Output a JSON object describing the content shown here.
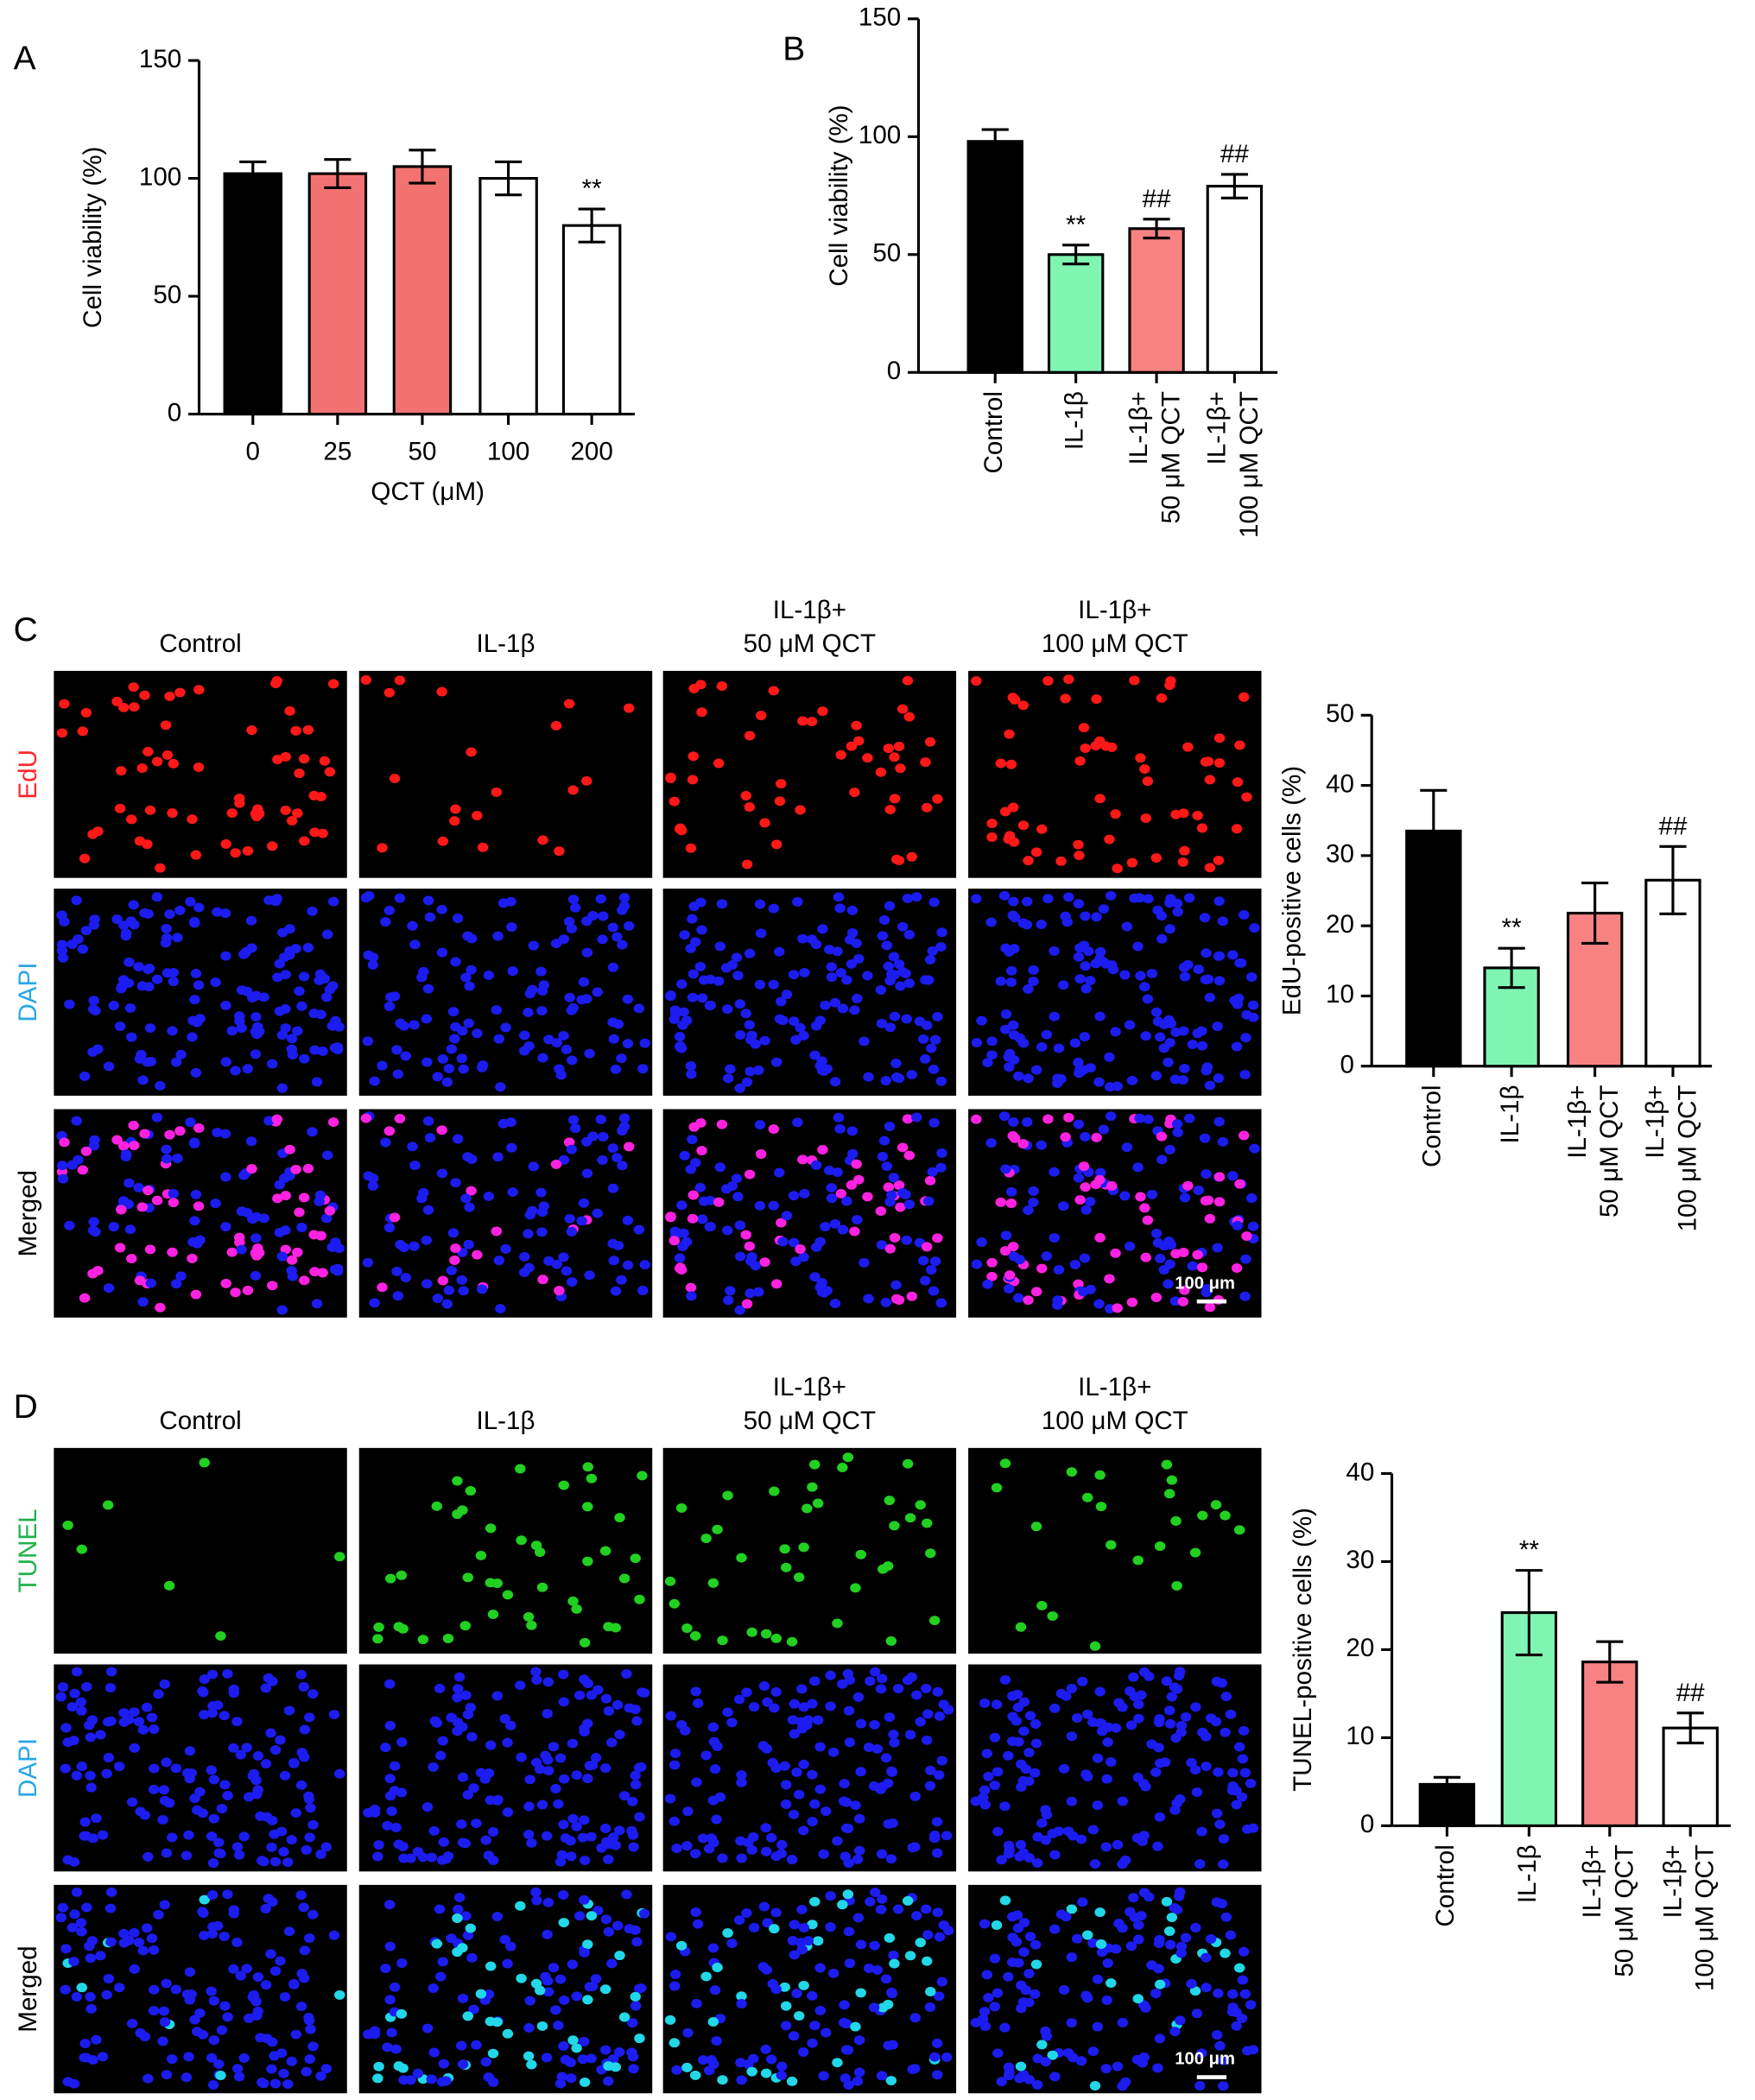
{
  "chart_data": [
    {
      "type": "bar",
      "panel": "A",
      "y_label": "Cell viability (%)",
      "x_label": "QCT (μM)",
      "categories": [
        "0",
        "25",
        "50",
        "100",
        "200"
      ],
      "values": [
        102,
        102,
        105,
        100,
        80
      ],
      "errors": [
        5,
        6,
        7,
        7,
        7
      ],
      "colors": [
        "#000000",
        "#f27272",
        "#f27272",
        "#ffffff",
        "#ffffff"
      ],
      "annotations": [
        null,
        null,
        null,
        null,
        "**"
      ],
      "ylim": [
        0,
        150
      ],
      "yticks": [
        0,
        50,
        100,
        150
      ]
    },
    {
      "type": "bar",
      "panel": "B",
      "y_label": "Cell viability (%)",
      "categories": [
        [
          "Control"
        ],
        [
          "IL-1β"
        ],
        [
          "IL-1β+",
          "50 μM QCT"
        ],
        [
          "IL-1β+",
          "100 μM QCT"
        ]
      ],
      "values": [
        98,
        50,
        61,
        79
      ],
      "errors": [
        5,
        4,
        4,
        5
      ],
      "colors": [
        "#000000",
        "#80f5b2",
        "#f88282",
        "#ffffff"
      ],
      "annotations": [
        null,
        "**",
        "##",
        "##"
      ],
      "ylim": [
        0,
        150
      ],
      "yticks": [
        0,
        50,
        100,
        150
      ]
    },
    {
      "type": "bar",
      "y_label": "EdU-positive cells (%)",
      "categories": [
        [
          "Control"
        ],
        [
          "IL-1β"
        ],
        [
          "IL-1β+",
          "50 μM QCT"
        ],
        [
          "IL-1β+",
          "100 μM QCT"
        ]
      ],
      "values": [
        33.5,
        14,
        21.8,
        26.5
      ],
      "errors": [
        5.8,
        2.8,
        4.3,
        4.8
      ],
      "colors": [
        "#000000",
        "#80f5b2",
        "#f88282",
        "#ffffff"
      ],
      "annotations": [
        null,
        "**",
        null,
        "##"
      ],
      "ylim": [
        0,
        50
      ],
      "yticks": [
        0,
        10,
        20,
        30,
        40,
        50
      ]
    },
    {
      "type": "bar",
      "y_label": "TUNEL-positive cells (%)",
      "categories": [
        [
          "Control"
        ],
        [
          "IL-1β"
        ],
        [
          "IL-1β+",
          "50 μM QCT"
        ],
        [
          "IL-1β+",
          "100 μM QCT"
        ]
      ],
      "values": [
        4.7,
        24.2,
        18.6,
        11.1
      ],
      "errors": [
        0.8,
        4.8,
        2.3,
        1.7
      ],
      "colors": [
        "#000000",
        "#80f5b2",
        "#f88282",
        "#ffffff"
      ],
      "annotations": [
        null,
        "**",
        null,
        "##"
      ],
      "ylim": [
        0,
        40
      ],
      "yticks": [
        0,
        10,
        20,
        30,
        40
      ]
    }
  ],
  "micrographs": [
    {
      "panel": "C",
      "columns": [
        [
          "Control"
        ],
        [
          "IL-1β"
        ],
        [
          "IL-1β+",
          "50 μM QCT"
        ],
        [
          "IL-1β+",
          "100 μM QCT"
        ]
      ],
      "rows": [
        {
          "label": "EdU",
          "color": "#ff2a2a"
        },
        {
          "label": "DAPI",
          "color": "#2aa6e6"
        },
        {
          "label": "Merged",
          "color": "#000000"
        }
      ],
      "stain_color": "#ff1818",
      "merged_color": "#ff22e0",
      "scale_bar": "100 μm"
    },
    {
      "panel": "D",
      "columns": [
        [
          "Control"
        ],
        [
          "IL-1β"
        ],
        [
          "IL-1β+",
          "50 μM QCT"
        ],
        [
          "IL-1β+",
          "100 μM QCT"
        ]
      ],
      "rows": [
        {
          "label": "TUNEL",
          "color": "#22b14c"
        },
        {
          "label": "DAPI",
          "color": "#2aa6e6"
        },
        {
          "label": "Merged",
          "color": "#000000"
        }
      ],
      "stain_color": "#22d022",
      "merged_color": "#22d8e8",
      "scale_bar": "100 μm"
    }
  ]
}
